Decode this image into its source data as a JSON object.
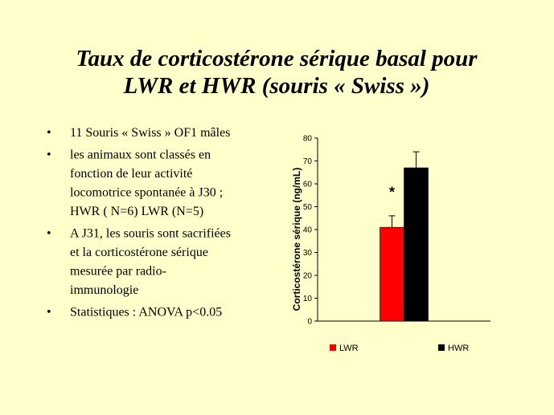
{
  "title": [
    "Taux de corticostérone sérique basal pour",
    "LWR et HWR (souris « Swiss »)"
  ],
  "bullets": [
    [
      "11 Souris « Swiss » OF1 mâles"
    ],
    [
      "les animaux sont classés en",
      "fonction de leur activité",
      "locomotrice spontanée à J30 ;",
      "HWR ( N=6) LWR (N=5)"
    ],
    [
      "A J31, les souris sont sacrifiées",
      "et la corticostérone  sérique",
      "mesurée par radio-",
      "immunologie"
    ],
    [
      "Statistiques  : ANOVA p<0.05"
    ]
  ],
  "bullet_symbol": "•",
  "chart_data": {
    "type": "bar",
    "categories": [
      null
    ],
    "series": [
      {
        "name": "LWR",
        "color": "#ff0000",
        "values": [
          41
        ],
        "errors": [
          5
        ]
      },
      {
        "name": "HWR",
        "color": "#000000",
        "values": [
          67
        ],
        "errors": [
          7
        ]
      }
    ],
    "ylabel": "Corticostérone sérique (ng/mL)",
    "ylim": [
      0,
      80
    ],
    "yticks": [
      0,
      10,
      20,
      30,
      40,
      50,
      60,
      70,
      80
    ],
    "annotation": {
      "text": "*",
      "series": 0,
      "y": 57
    },
    "legend": "bottom"
  }
}
